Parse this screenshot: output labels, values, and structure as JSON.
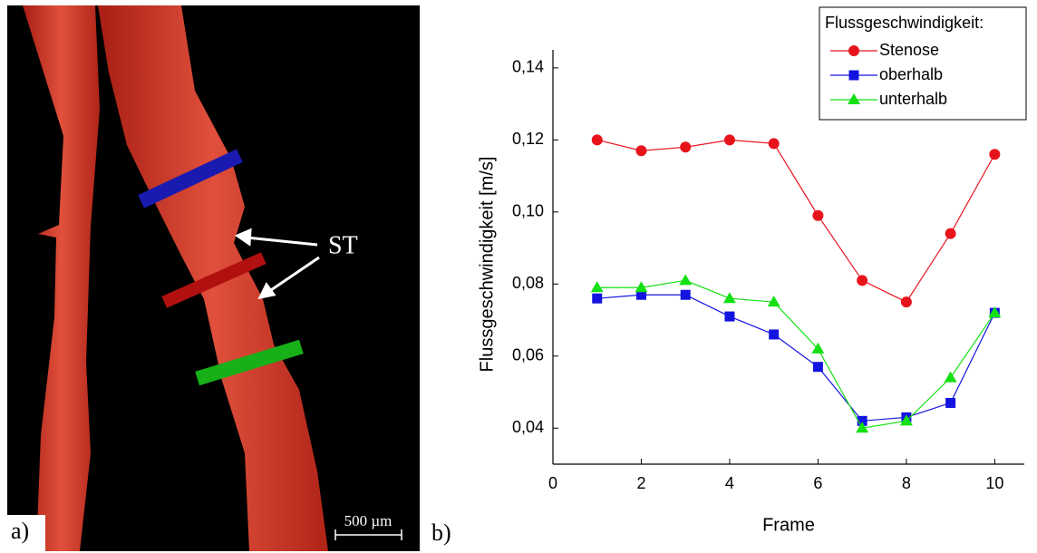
{
  "image_panel": {
    "annotation": "ST",
    "scale_bar": "500 µm",
    "panel_label": "a)"
  },
  "chart_data": {
    "type": "line",
    "panel_label": "b)",
    "x_label": "Frame",
    "y_label": "Flussgeschwindigkeit [m/s]",
    "legend_title": "Flussgeschwindigkeit:",
    "legend_position": "top-right",
    "x": [
      1,
      2,
      3,
      4,
      5,
      6,
      7,
      8,
      9,
      10
    ],
    "series": [
      {
        "name": "Stenose",
        "color": "#e8141c",
        "marker": "circle",
        "values": [
          0.12,
          0.117,
          0.118,
          0.12,
          0.119,
          0.099,
          0.081,
          0.075,
          0.094,
          0.116
        ]
      },
      {
        "name": "oberhalb",
        "color": "#1414e0",
        "marker": "square",
        "values": [
          0.076,
          0.077,
          0.077,
          0.071,
          0.066,
          0.057,
          0.042,
          0.043,
          0.047,
          0.072
        ]
      },
      {
        "name": "unterhalb",
        "color": "#14e014",
        "marker": "triangle",
        "values": [
          0.079,
          0.079,
          0.081,
          0.076,
          0.075,
          0.062,
          0.04,
          0.042,
          0.054,
          0.072
        ]
      }
    ],
    "xlim": [
      0,
      10.67
    ],
    "xticks": [
      0,
      2,
      4,
      6,
      8,
      10
    ],
    "ylim": [
      0.03,
      0.145
    ],
    "yticks": [
      {
        "value": 0.04,
        "label": "0,04"
      },
      {
        "value": 0.06,
        "label": "0,06"
      },
      {
        "value": 0.08,
        "label": "0,08"
      },
      {
        "value": 0.1,
        "label": "0,10"
      },
      {
        "value": 0.12,
        "label": "0,12"
      },
      {
        "value": 0.14,
        "label": "0,14"
      }
    ]
  }
}
